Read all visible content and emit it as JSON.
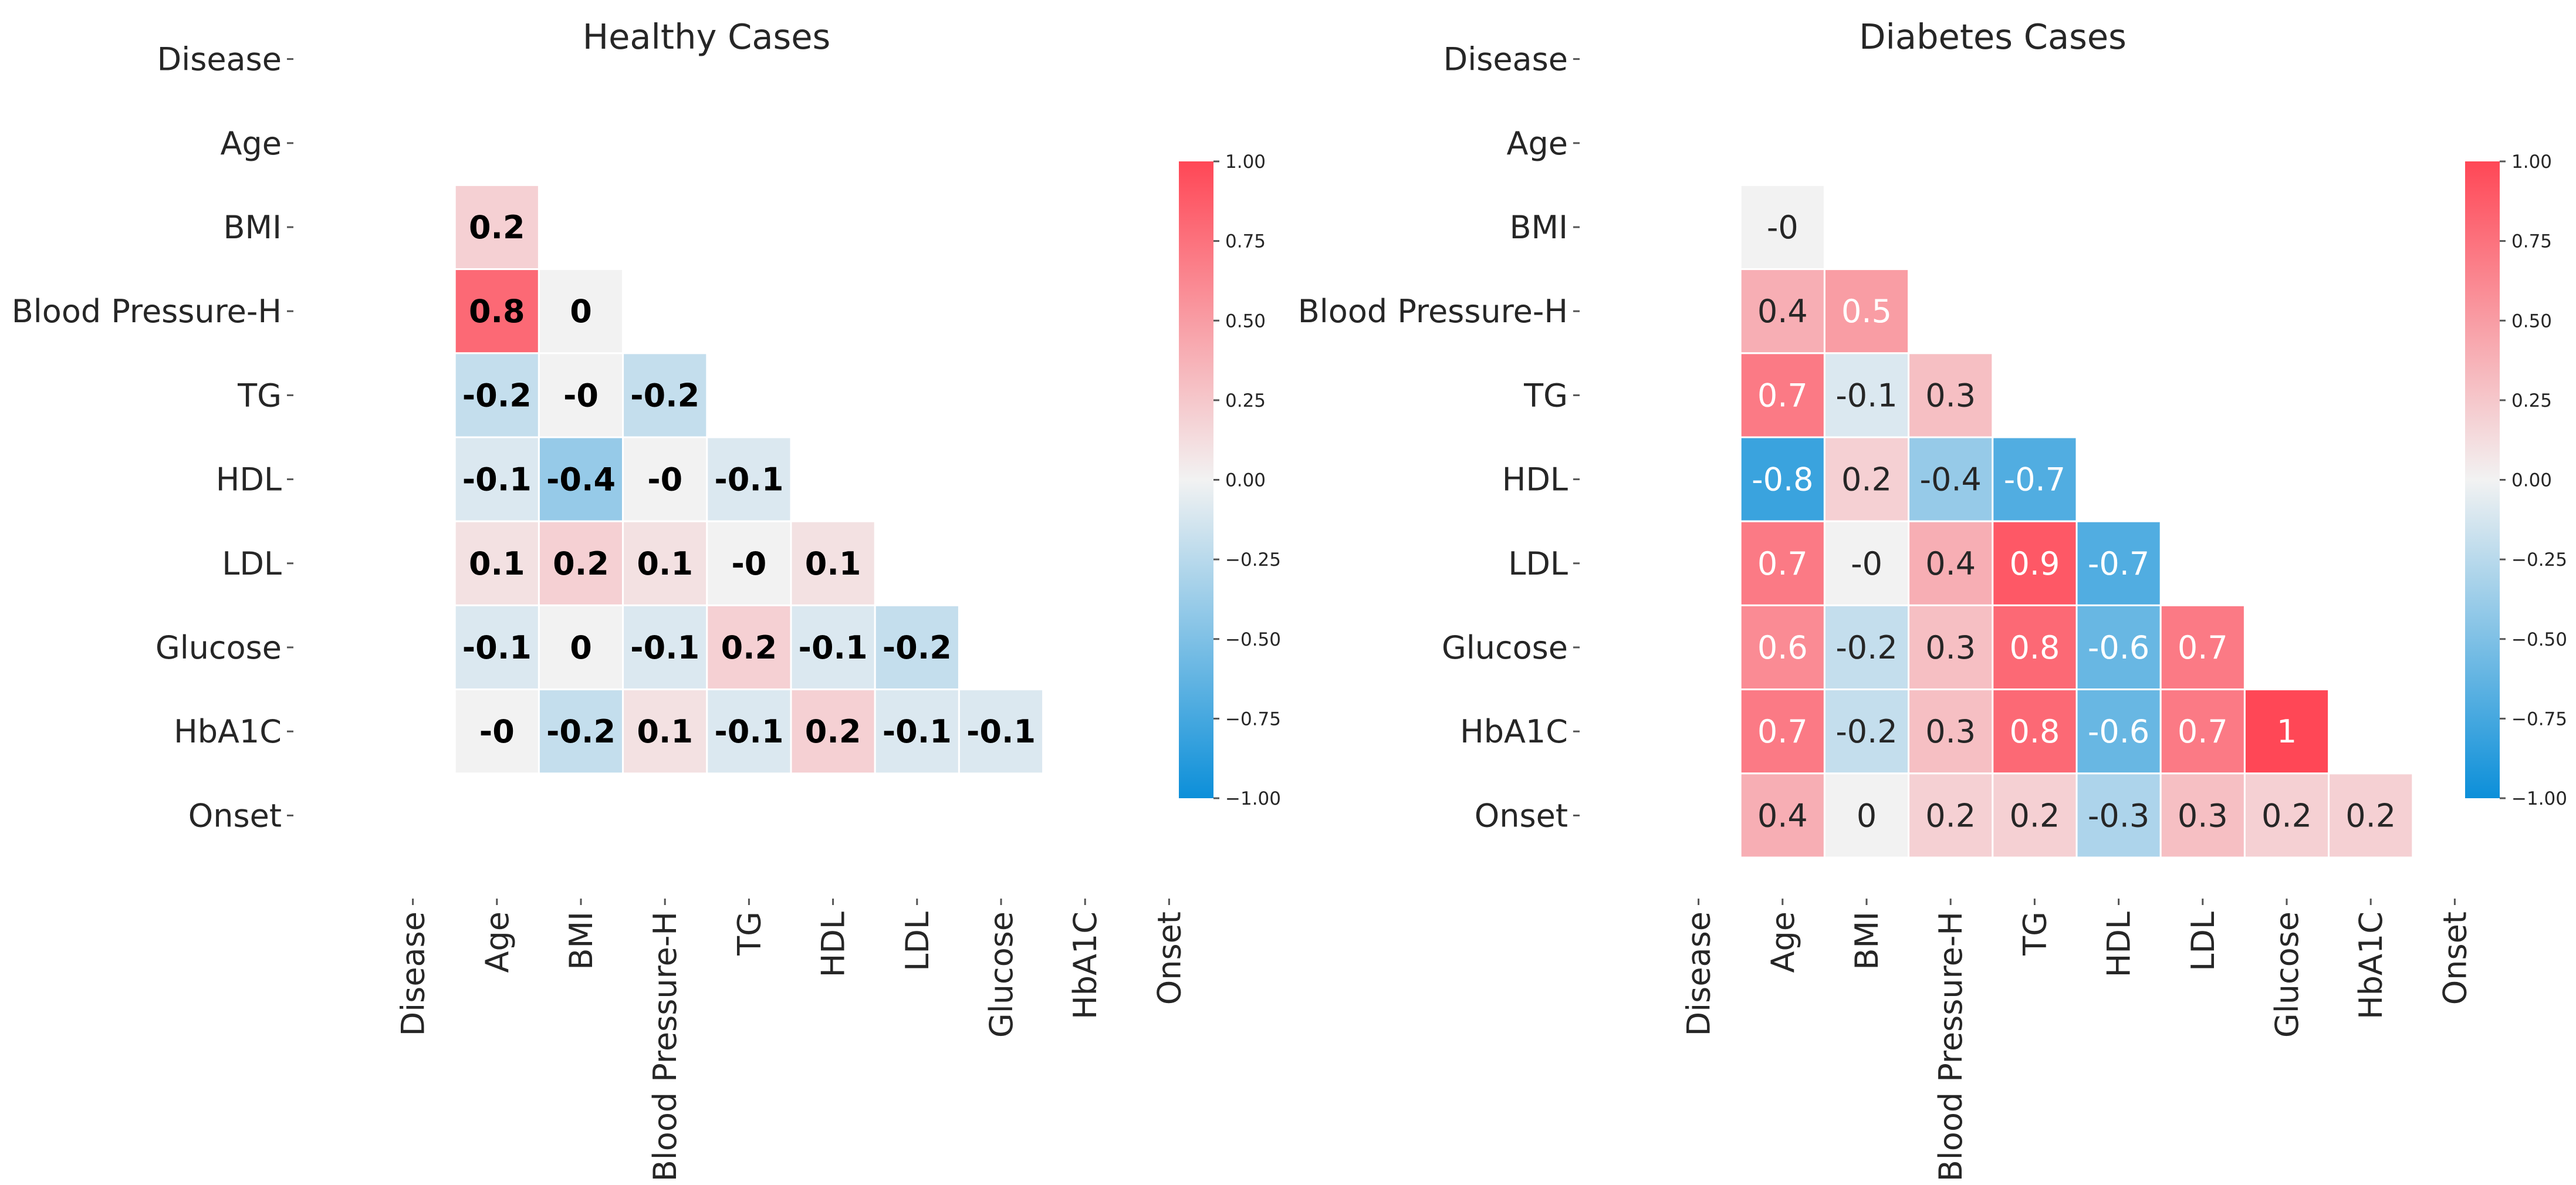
{
  "chart_data": [
    {
      "type": "heatmap",
      "title": "Healthy Cases",
      "variables": [
        "Disease",
        "Age",
        "BMI",
        "Blood Pressure-H",
        "TG",
        "HDL",
        "LDL",
        "Glucose",
        "HbA1C",
        "Onset"
      ],
      "mask": "upper-triangle-and-diagonal",
      "annot_bold": true,
      "cells": [
        {
          "row": "BMI",
          "col": "Age",
          "value": 0.2,
          "label": "0.2"
        },
        {
          "row": "Blood Pressure-H",
          "col": "Age",
          "value": 0.8,
          "label": "0.8"
        },
        {
          "row": "Blood Pressure-H",
          "col": "BMI",
          "value": 0.0,
          "label": "0"
        },
        {
          "row": "TG",
          "col": "Age",
          "value": -0.2,
          "label": "-0.2"
        },
        {
          "row": "TG",
          "col": "BMI",
          "value": 0.0,
          "label": "-0"
        },
        {
          "row": "TG",
          "col": "Blood Pressure-H",
          "value": -0.2,
          "label": "-0.2"
        },
        {
          "row": "HDL",
          "col": "Age",
          "value": -0.1,
          "label": "-0.1"
        },
        {
          "row": "HDL",
          "col": "BMI",
          "value": -0.4,
          "label": "-0.4"
        },
        {
          "row": "HDL",
          "col": "Blood Pressure-H",
          "value": 0.0,
          "label": "-0"
        },
        {
          "row": "HDL",
          "col": "TG",
          "value": -0.1,
          "label": "-0.1"
        },
        {
          "row": "LDL",
          "col": "Age",
          "value": 0.1,
          "label": "0.1"
        },
        {
          "row": "LDL",
          "col": "BMI",
          "value": 0.2,
          "label": "0.2"
        },
        {
          "row": "LDL",
          "col": "Blood Pressure-H",
          "value": 0.1,
          "label": "0.1"
        },
        {
          "row": "LDL",
          "col": "TG",
          "value": 0.0,
          "label": "-0"
        },
        {
          "row": "LDL",
          "col": "HDL",
          "value": 0.1,
          "label": "0.1"
        },
        {
          "row": "Glucose",
          "col": "Age",
          "value": -0.1,
          "label": "-0.1"
        },
        {
          "row": "Glucose",
          "col": "BMI",
          "value": 0.0,
          "label": "0"
        },
        {
          "row": "Glucose",
          "col": "Blood Pressure-H",
          "value": -0.1,
          "label": "-0.1"
        },
        {
          "row": "Glucose",
          "col": "TG",
          "value": 0.2,
          "label": "0.2"
        },
        {
          "row": "Glucose",
          "col": "HDL",
          "value": -0.1,
          "label": "-0.1"
        },
        {
          "row": "Glucose",
          "col": "LDL",
          "value": -0.2,
          "label": "-0.2"
        },
        {
          "row": "HbA1C",
          "col": "Age",
          "value": 0.0,
          "label": "-0"
        },
        {
          "row": "HbA1C",
          "col": "BMI",
          "value": -0.2,
          "label": "-0.2"
        },
        {
          "row": "HbA1C",
          "col": "Blood Pressure-H",
          "value": 0.1,
          "label": "0.1"
        },
        {
          "row": "HbA1C",
          "col": "TG",
          "value": -0.1,
          "label": "-0.1"
        },
        {
          "row": "HbA1C",
          "col": "HDL",
          "value": 0.2,
          "label": "0.2"
        },
        {
          "row": "HbA1C",
          "col": "LDL",
          "value": -0.1,
          "label": "-0.1"
        },
        {
          "row": "HbA1C",
          "col": "Glucose",
          "value": -0.1,
          "label": "-0.1"
        }
      ],
      "colorbar": {
        "range": [
          -1.0,
          1.0
        ],
        "ticks": [
          "-1.00",
          "-0.75",
          "-0.50",
          "-0.25",
          "0.00",
          "0.25",
          "0.50",
          "0.75",
          "1.00"
        ],
        "low_color": "#0C8FD9",
        "mid_color": "#F2F2F2",
        "high_color": "#FF4756"
      }
    },
    {
      "type": "heatmap",
      "title": "Diabetes Cases",
      "variables": [
        "Disease",
        "Age",
        "BMI",
        "Blood Pressure-H",
        "TG",
        "HDL",
        "LDL",
        "Glucose",
        "HbA1C",
        "Onset"
      ],
      "mask": "upper-triangle-and-diagonal",
      "annot_bold": false,
      "cells": [
        {
          "row": "BMI",
          "col": "Age",
          "value": 0.0,
          "label": "-0"
        },
        {
          "row": "Blood Pressure-H",
          "col": "Age",
          "value": 0.4,
          "label": "0.4"
        },
        {
          "row": "Blood Pressure-H",
          "col": "BMI",
          "value": 0.5,
          "label": "0.5"
        },
        {
          "row": "TG",
          "col": "Age",
          "value": 0.7,
          "label": "0.7"
        },
        {
          "row": "TG",
          "col": "BMI",
          "value": -0.1,
          "label": "-0.1"
        },
        {
          "row": "TG",
          "col": "Blood Pressure-H",
          "value": 0.3,
          "label": "0.3"
        },
        {
          "row": "HDL",
          "col": "Age",
          "value": -0.8,
          "label": "-0.8"
        },
        {
          "row": "HDL",
          "col": "BMI",
          "value": 0.2,
          "label": "0.2"
        },
        {
          "row": "HDL",
          "col": "Blood Pressure-H",
          "value": -0.4,
          "label": "-0.4"
        },
        {
          "row": "HDL",
          "col": "TG",
          "value": -0.7,
          "label": "-0.7"
        },
        {
          "row": "LDL",
          "col": "Age",
          "value": 0.7,
          "label": "0.7"
        },
        {
          "row": "LDL",
          "col": "BMI",
          "value": 0.0,
          "label": "-0"
        },
        {
          "row": "LDL",
          "col": "Blood Pressure-H",
          "value": 0.4,
          "label": "0.4"
        },
        {
          "row": "LDL",
          "col": "TG",
          "value": 0.9,
          "label": "0.9"
        },
        {
          "row": "LDL",
          "col": "HDL",
          "value": -0.7,
          "label": "-0.7"
        },
        {
          "row": "Glucose",
          "col": "Age",
          "value": 0.6,
          "label": "0.6"
        },
        {
          "row": "Glucose",
          "col": "BMI",
          "value": -0.2,
          "label": "-0.2"
        },
        {
          "row": "Glucose",
          "col": "Blood Pressure-H",
          "value": 0.3,
          "label": "0.3"
        },
        {
          "row": "Glucose",
          "col": "TG",
          "value": 0.8,
          "label": "0.8"
        },
        {
          "row": "Glucose",
          "col": "HDL",
          "value": -0.6,
          "label": "-0.6"
        },
        {
          "row": "Glucose",
          "col": "LDL",
          "value": 0.7,
          "label": "0.7"
        },
        {
          "row": "HbA1C",
          "col": "Age",
          "value": 0.7,
          "label": "0.7"
        },
        {
          "row": "HbA1C",
          "col": "BMI",
          "value": -0.2,
          "label": "-0.2"
        },
        {
          "row": "HbA1C",
          "col": "Blood Pressure-H",
          "value": 0.3,
          "label": "0.3"
        },
        {
          "row": "HbA1C",
          "col": "TG",
          "value": 0.8,
          "label": "0.8"
        },
        {
          "row": "HbA1C",
          "col": "HDL",
          "value": -0.6,
          "label": "-0.6"
        },
        {
          "row": "HbA1C",
          "col": "LDL",
          "value": 0.7,
          "label": "0.7"
        },
        {
          "row": "HbA1C",
          "col": "Glucose",
          "value": 1.0,
          "label": "1"
        },
        {
          "row": "Onset",
          "col": "Age",
          "value": 0.4,
          "label": "0.4"
        },
        {
          "row": "Onset",
          "col": "BMI",
          "value": 0.0,
          "label": "0"
        },
        {
          "row": "Onset",
          "col": "Blood Pressure-H",
          "value": 0.2,
          "label": "0.2"
        },
        {
          "row": "Onset",
          "col": "TG",
          "value": 0.2,
          "label": "0.2"
        },
        {
          "row": "Onset",
          "col": "HDL",
          "value": -0.3,
          "label": "-0.3"
        },
        {
          "row": "Onset",
          "col": "LDL",
          "value": 0.3,
          "label": "0.3"
        },
        {
          "row": "Onset",
          "col": "Glucose",
          "value": 0.2,
          "label": "0.2"
        },
        {
          "row": "Onset",
          "col": "HbA1C",
          "value": 0.2,
          "label": "0.2"
        }
      ],
      "colorbar": {
        "range": [
          -1.0,
          1.0
        ],
        "ticks": [
          "-1.00",
          "-0.75",
          "-0.50",
          "-0.25",
          "0.00",
          "0.25",
          "0.50",
          "0.75",
          "1.00"
        ],
        "low_color": "#0C8FD9",
        "mid_color": "#F2F2F2",
        "high_color": "#FF4756"
      }
    }
  ]
}
